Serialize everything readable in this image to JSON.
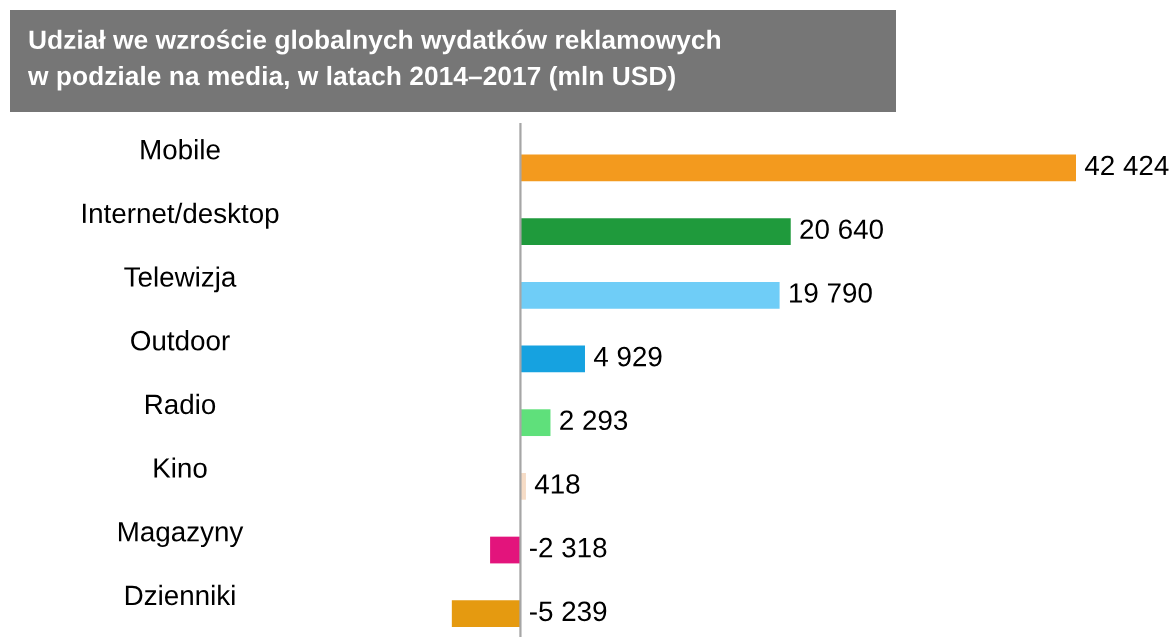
{
  "chart_data": {
    "type": "bar",
    "orientation": "horizontal",
    "title": "Udział we wzroście globalnych wydatków reklamowych\nw podziale na media, w latach 2014–2017 (mln USD)",
    "categories": [
      "Mobile",
      "Internet/desktop",
      "Telewizja",
      "Outdoor",
      "Radio",
      "Kino",
      "Magazyny",
      "Dzienniki"
    ],
    "values": [
      42424,
      20640,
      19790,
      4929,
      2293,
      418,
      -2318,
      -5239
    ],
    "value_labels": [
      "42 424",
      "20 640",
      "19 790",
      "4 929",
      "2 293",
      "418",
      "-2 318",
      "-5 239"
    ],
    "colors": [
      "#f39a1e",
      "#1f9a3c",
      "#6fcdf7",
      "#16a2e0",
      "#5fe07b",
      "#f6dcc6",
      "#e3147c",
      "#e59a10"
    ],
    "legend": false
  }
}
